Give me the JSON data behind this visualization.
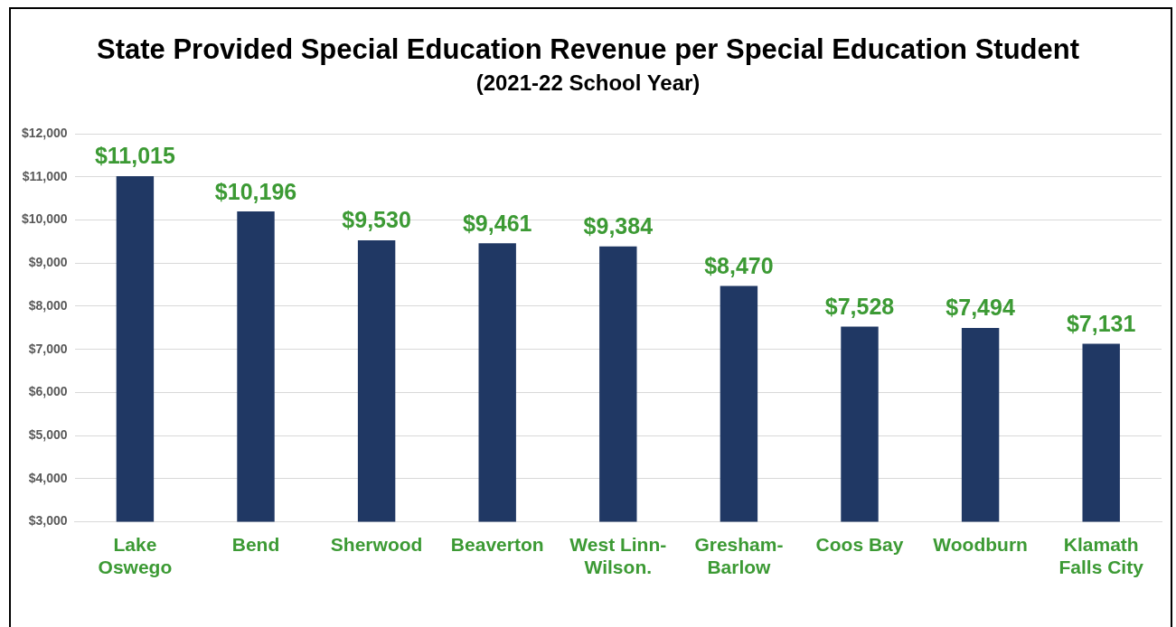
{
  "chart_data": {
    "type": "bar",
    "title": "State Provided Special Education Revenue per Special Education Student",
    "subtitle": "(2021-22 School Year)",
    "categories": [
      "Lake\nOswego",
      "Bend",
      "Sherwood",
      "Beaverton",
      "West Linn-\nWilson.",
      "Gresham-\nBarlow",
      "Coos Bay",
      "Woodburn",
      "Klamath\nFalls City"
    ],
    "values": [
      11015,
      10196,
      9530,
      9461,
      9384,
      8470,
      7528,
      7494,
      7131
    ],
    "value_labels": [
      "$11,015",
      "$10,196",
      "$9,530",
      "$9,461",
      "$9,384",
      "$8,470",
      "$7,528",
      "$7,494",
      "$7,131"
    ],
    "color": "#203864",
    "ylim": [
      3000,
      12000
    ],
    "yticks": [
      {
        "value": 3000,
        "label": "$3,000"
      },
      {
        "value": 4000,
        "label": "$4,000"
      },
      {
        "value": 5000,
        "label": "$5,000"
      },
      {
        "value": 6000,
        "label": "$6,000"
      },
      {
        "value": 7000,
        "label": "$7,000"
      },
      {
        "value": 8000,
        "label": "$8,000"
      },
      {
        "value": 9000,
        "label": "$9,000"
      },
      {
        "value": 10000,
        "label": "$10,000"
      },
      {
        "value": 11000,
        "label": "$11,000"
      },
      {
        "value": 12000,
        "label": "$12,000"
      }
    ],
    "grid": "y",
    "legend": false
  }
}
